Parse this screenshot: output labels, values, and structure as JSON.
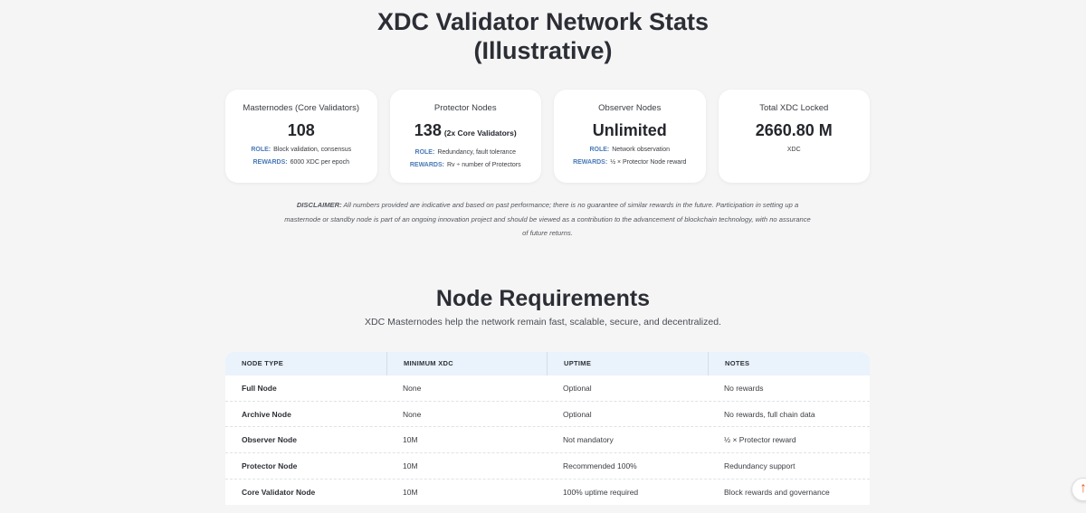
{
  "header": {
    "title_line1": "XDC Validator Network Stats",
    "title_line2": "(Illustrative)"
  },
  "stats": [
    {
      "label": "Masternodes (Core Validators)",
      "value": "108",
      "suffix": "",
      "role_key": "ROLE:",
      "role": "Block validation, consensus",
      "rewards_key": "REWARDS:",
      "rewards": "6000 XDC per epoch"
    },
    {
      "label": "Protector Nodes",
      "value": "138",
      "suffix": "(2x Core Validators)",
      "role_key": "ROLE:",
      "role": "Redundancy, fault tolerance",
      "rewards_key": "REWARDS:",
      "rewards": "Rv ÷ number of Protectors"
    },
    {
      "label": "Observer Nodes",
      "value": "Unlimited",
      "suffix": "",
      "role_key": "ROLE:",
      "role": "Network observation",
      "rewards_key": "REWARDS:",
      "rewards": "½ × Protector Node reward"
    },
    {
      "label": "Total XDC Locked",
      "value": "2660.80 M",
      "unit": "XDC"
    }
  ],
  "disclaimer": {
    "lead": "DISCLAIMER:",
    "text": "All numbers provided are indicative and based on past performance; there is no guarantee of similar rewards in the future. Participation in setting up a masternode or standby node is part of an ongoing innovation project and should be viewed as a contribution to the advancement of blockchain technology, with no assurance of future returns."
  },
  "requirements": {
    "title": "Node Requirements",
    "subtitle": "XDC Masternodes help the network remain fast, scalable, secure, and decentralized.",
    "columns": [
      "NODE TYPE",
      "MINIMUM XDC",
      "UPTIME",
      "NOTES"
    ],
    "rows": [
      [
        "Full Node",
        "None",
        "Optional",
        "No rewards"
      ],
      [
        "Archive Node",
        "None",
        "Optional",
        "No rewards, full chain data"
      ],
      [
        "Observer Node",
        "10M",
        "Not mandatory",
        "½ × Protector reward"
      ],
      [
        "Protector Node",
        "10M",
        "Recommended 100%",
        "Redundancy support"
      ],
      [
        "Core Validator Node",
        "10M",
        "100% uptime required",
        "Block rewards and governance"
      ]
    ]
  },
  "fab": {
    "icon": "scroll-top-icon",
    "glyph": "↑"
  },
  "colors": {
    "accent": "#4a79b8",
    "header_bg": "#eaf2fb",
    "fab_icon": "#e8622a"
  }
}
